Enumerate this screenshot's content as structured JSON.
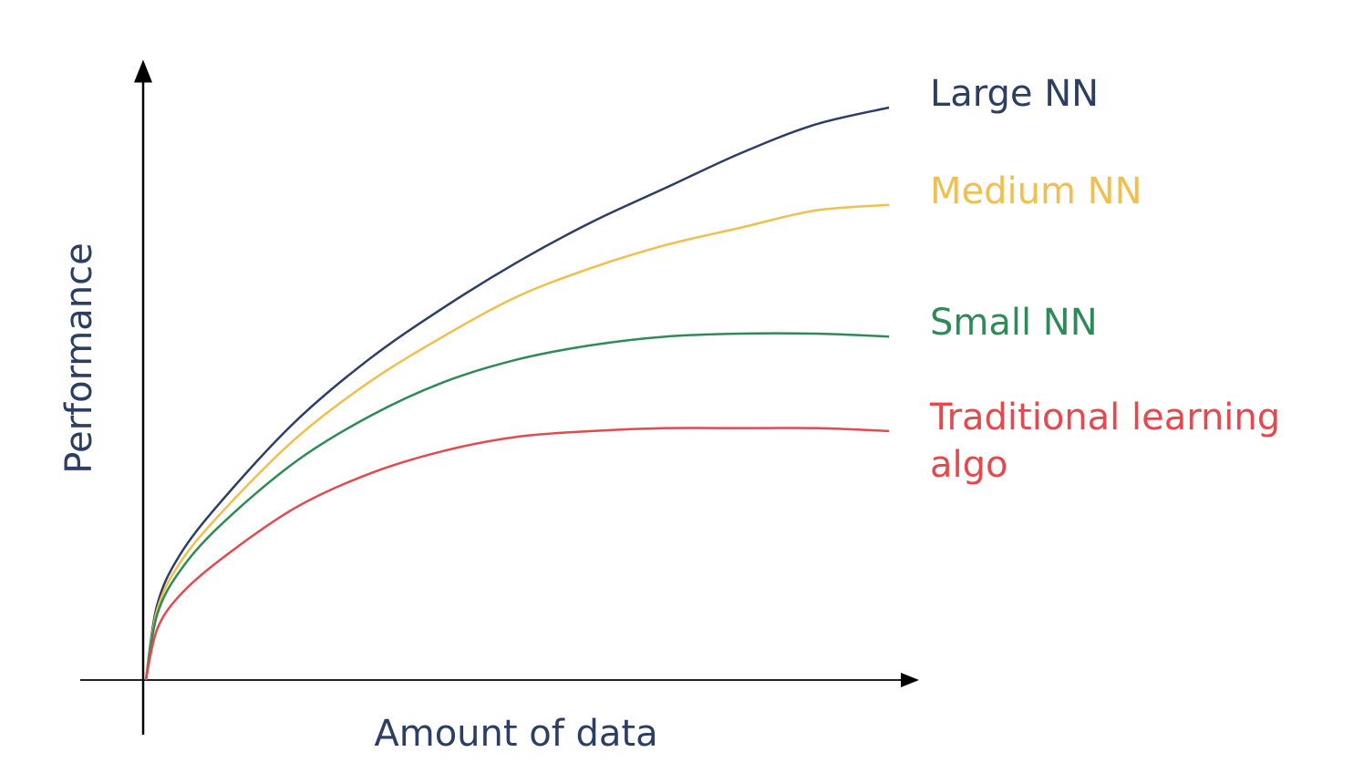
{
  "chart_data": {
    "type": "line",
    "title": "",
    "xlabel": "Amount of data",
    "ylabel": "Performance",
    "ticks": "none",
    "grid": false,
    "legend": "direct labels at right end of each curve",
    "xlim": [
      0,
      100
    ],
    "ylim": [
      0,
      100
    ],
    "x": [
      0,
      10,
      20,
      30,
      40,
      50,
      60,
      70,
      80,
      90,
      100
    ],
    "series": [
      {
        "name": "Large NN",
        "color": "#2c3e63",
        "values": [
          0,
          31,
          45,
          56,
          65,
          73,
          80,
          86,
          92,
          97,
          100
        ]
      },
      {
        "name": "Medium NN",
        "color": "#f0bf4c",
        "values": [
          0,
          29,
          42,
          52,
          60,
          67,
          72,
          76,
          79,
          82,
          83
        ]
      },
      {
        "name": "Small NN",
        "color": "#2e8b57",
        "values": [
          0,
          27,
          38,
          46,
          52,
          56,
          58.5,
          60,
          60.5,
          60.5,
          60
        ]
      },
      {
        "name": "Traditional learning\nalgo",
        "color": "#e5484d",
        "values": [
          0,
          21,
          30,
          36,
          40,
          42.5,
          43.5,
          44,
          44,
          44,
          43.5
        ]
      }
    ]
  }
}
